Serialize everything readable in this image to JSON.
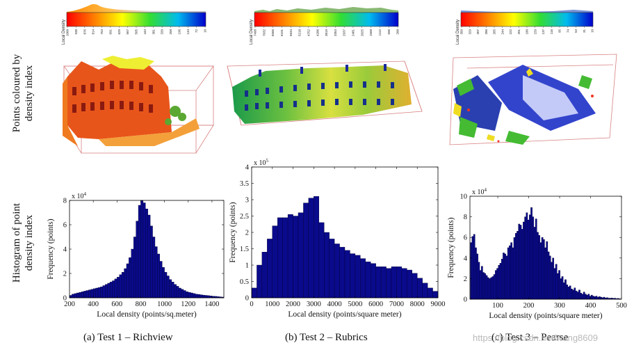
{
  "row_labels": {
    "top": [
      "Points coloured by",
      "density index"
    ],
    "bottom": [
      "Histogram of point",
      "density index"
    ]
  },
  "colorbar_title": "Local Density",
  "captions": [
    "(a) Test 1 – Richview",
    "(b) Test 2 – Rubrics",
    "(c) Test 3 – Pearse"
  ],
  "watermark": "https://blog.csdn.net/wang8609",
  "colors": {
    "bar_fill": "#0a0a8c",
    "bar_edge": "#000033",
    "axis": "#000000"
  },
  "colorbars": [
    {
      "ticks": [
        "1000",
        "938",
        "876",
        "814",
        "753",
        "691",
        "629",
        "567",
        "505",
        "443",
        "381",
        "320",
        "258",
        "196",
        "134",
        "72",
        "10"
      ]
    },
    {
      "ticks": [
        "7498",
        "7032",
        "6566",
        "6101",
        "5634",
        "5218",
        "4752",
        "4286",
        "3819",
        "3353",
        "2937",
        "2481",
        "2025",
        "1568",
        "1112",
        "696",
        "200"
      ]
    },
    {
      "ticks": [
        "350",
        "329",
        "307",
        "286",
        "265",
        "244",
        "222",
        "201",
        "180",
        "159",
        "137",
        "116",
        "95",
        "74",
        "53",
        "31",
        "10"
      ]
    }
  ],
  "chart_data": [
    {
      "type": "bar",
      "title": "",
      "xlabel": "Local density (points/sq.meter)",
      "ylabel": "Frequency (points)",
      "y_multiplier": "x 10^4",
      "xlim": [
        200,
        1500
      ],
      "ylim": [
        0,
        8
      ],
      "xticks": [
        "200",
        "400",
        "600",
        "800",
        "1000",
        "1200",
        "1400"
      ],
      "yticks": [
        "0",
        "2",
        "4",
        "6",
        "8"
      ],
      "x": [
        210,
        230,
        250,
        270,
        290,
        310,
        330,
        350,
        370,
        390,
        410,
        430,
        450,
        470,
        490,
        510,
        530,
        550,
        570,
        590,
        610,
        630,
        650,
        670,
        690,
        710,
        730,
        750,
        770,
        790,
        810,
        830,
        850,
        870,
        890,
        910,
        930,
        950,
        970,
        990,
        1010,
        1030,
        1050,
        1070,
        1090,
        1110,
        1130,
        1150,
        1170,
        1190,
        1210,
        1230,
        1250,
        1270,
        1290,
        1310,
        1330,
        1350,
        1370,
        1390,
        1410,
        1430,
        1450,
        1470,
        1490
      ],
      "values": [
        0.2,
        0.3,
        0.35,
        0.4,
        0.45,
        0.5,
        0.55,
        0.6,
        0.65,
        0.7,
        0.75,
        0.8,
        0.85,
        0.9,
        1.0,
        1.1,
        1.2,
        1.3,
        1.4,
        1.55,
        1.7,
        1.9,
        2.1,
        2.4,
        2.8,
        3.3,
        4.0,
        5.0,
        6.3,
        7.6,
        8.0,
        7.8,
        7.3,
        6.8,
        5.9,
        5.0,
        4.2,
        3.6,
        3.0,
        2.5,
        2.1,
        1.8,
        1.5,
        1.3,
        1.1,
        0.95,
        0.8,
        0.7,
        0.6,
        0.5,
        0.45,
        0.4,
        0.35,
        0.3,
        0.28,
        0.25,
        0.22,
        0.2,
        0.18,
        0.15,
        0.13,
        0.12,
        0.1,
        0.08,
        0.06
      ]
    },
    {
      "type": "bar",
      "title": "",
      "xlabel": "Local density (points/square meter)",
      "ylabel": "Frequency (points)",
      "y_multiplier": "x 10^5",
      "xlim": [
        0,
        9000
      ],
      "ylim": [
        0,
        4
      ],
      "xticks": [
        "0",
        "1000",
        "2000",
        "3000",
        "4000",
        "5000",
        "6000",
        "7000",
        "8000",
        "9000"
      ],
      "yticks": [
        "0",
        "0.5",
        "1",
        "1.5",
        "2",
        "2.5",
        "3",
        "3.5",
        "4"
      ],
      "x": [
        125,
        375,
        625,
        875,
        1125,
        1375,
        1625,
        1875,
        2125,
        2375,
        2625,
        2875,
        3125,
        3375,
        3625,
        3875,
        4125,
        4375,
        4625,
        4875,
        5125,
        5375,
        5625,
        5875,
        6125,
        6375,
        6625,
        6875,
        7125,
        7375,
        7625,
        7875,
        8125,
        8375,
        8625,
        8875
      ],
      "values": [
        0.3,
        1.0,
        1.4,
        1.8,
        2.2,
        2.45,
        2.45,
        2.55,
        2.5,
        2.6,
        2.9,
        3.05,
        3.1,
        2.3,
        2.0,
        1.8,
        1.65,
        1.55,
        1.45,
        1.35,
        1.3,
        1.2,
        1.1,
        1.05,
        0.95,
        0.95,
        0.9,
        0.95,
        0.95,
        0.9,
        0.85,
        0.75,
        0.6,
        0.45,
        0.3,
        0.2
      ]
    },
    {
      "type": "bar",
      "title": "",
      "xlabel": "Local density (points/square meter)",
      "ylabel": "Frequency (points)",
      "y_multiplier": "x 10^4",
      "xlim": [
        10,
        500
      ],
      "ylim": [
        0,
        10
      ],
      "xticks": [
        "100",
        "200",
        "300",
        "400",
        "500"
      ],
      "yticks": [
        "0",
        "2",
        "4",
        "6",
        "8",
        "10"
      ],
      "x": [
        14,
        19,
        24,
        29,
        34,
        39,
        44,
        49,
        54,
        59,
        64,
        69,
        74,
        79,
        84,
        89,
        94,
        99,
        104,
        109,
        114,
        119,
        124,
        129,
        134,
        139,
        144,
        149,
        154,
        159,
        164,
        169,
        174,
        179,
        184,
        189,
        194,
        199,
        204,
        209,
        214,
        219,
        224,
        229,
        234,
        239,
        244,
        249,
        254,
        259,
        264,
        269,
        274,
        279,
        284,
        289,
        294,
        299,
        304,
        309,
        314,
        319,
        324,
        329,
        334,
        339,
        344,
        349,
        354,
        359,
        364,
        369,
        374,
        379,
        384,
        389,
        394,
        399,
        404,
        409,
        414,
        419,
        424,
        429,
        434,
        439,
        444,
        449,
        454,
        459,
        464,
        469,
        474,
        479,
        484,
        489,
        494
      ],
      "values": [
        5.5,
        6.1,
        6.3,
        5.0,
        4.4,
        3.6,
        2.8,
        3.2,
        2.6,
        2.5,
        2.3,
        2.1,
        2.0,
        2.1,
        2.2,
        2.4,
        2.8,
        3.0,
        3.3,
        3.5,
        3.9,
        4.5,
        4.4,
        4.2,
        5.0,
        5.2,
        5.5,
        5.0,
        6.0,
        6.4,
        6.6,
        7.3,
        7.2,
        6.8,
        7.5,
        8.0,
        8.4,
        7.7,
        8.2,
        8.9,
        8.0,
        7.0,
        7.8,
        6.5,
        6.2,
        5.5,
        6.0,
        5.8,
        5.0,
        5.6,
        4.6,
        4.2,
        3.6,
        4.0,
        3.0,
        3.4,
        2.5,
        2.8,
        2.0,
        2.2,
        1.6,
        1.9,
        1.4,
        1.2,
        1.3,
        1.0,
        0.9,
        1.1,
        0.8,
        0.7,
        0.9,
        0.6,
        0.5,
        0.7,
        0.5,
        0.4,
        0.5,
        0.3,
        0.4,
        0.3,
        0.25,
        0.3,
        0.2,
        0.25,
        0.2,
        0.15,
        0.2,
        0.12,
        0.15,
        0.1,
        0.1,
        0.12,
        0.08,
        0.1,
        0.06,
        0.08,
        0.05
      ]
    }
  ]
}
